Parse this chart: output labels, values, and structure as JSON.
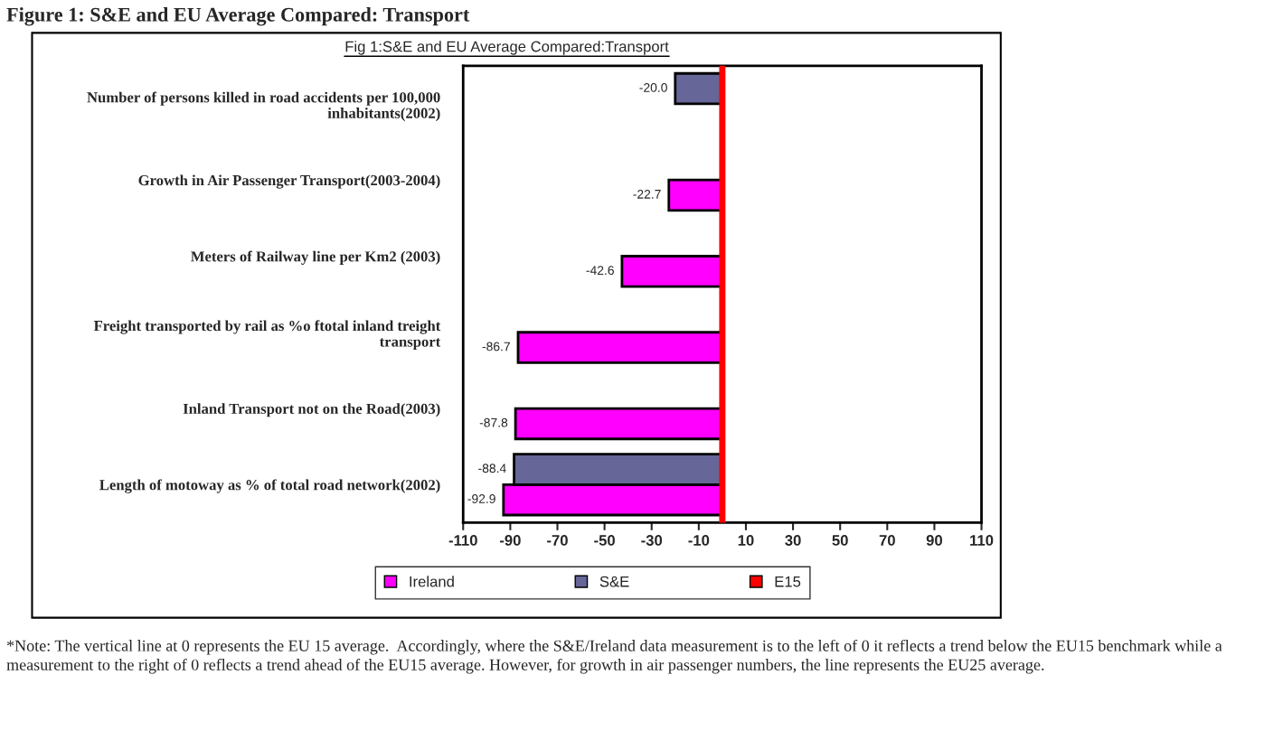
{
  "chart_data": {
    "type": "bar",
    "orientation": "horizontal",
    "title": "Figure 1: S&E and EU Average Compared: Transport",
    "subtitle": "Fig 1:S&E and EU Average Compared:Transport",
    "categories": [
      "Number of persons killed in road accidents per 100,000\ninhabitants(2002)",
      "Growth in Air Passenger Transport(2003-2004)",
      "Meters of Railway line per Km2 (2003)",
      "Freight transported by rail as %o ftotal inland treight\ntransport",
      "Inland Transport not on the Road(2003)",
      "Length of motoway as % of total road network(2002)"
    ],
    "series": [
      {
        "name": "Ireland",
        "color": "#ff00ff",
        "values": [
          null,
          -22.7,
          -42.6,
          -86.7,
          -87.8,
          -92.9
        ],
        "value_labels": [
          null,
          "-22.7",
          "-42.6",
          "-86.7",
          "-87.8",
          "-92.9"
        ]
      },
      {
        "name": "S&E",
        "color": "#666699",
        "values": [
          -20.0,
          null,
          null,
          null,
          null,
          -88.4
        ],
        "value_labels": [
          "-20.0",
          null,
          null,
          null,
          null,
          "-88.4"
        ]
      }
    ],
    "ref_lines": [
      {
        "axis": "x",
        "value": 0,
        "label": "E15",
        "color": "#ff0000"
      }
    ],
    "xlim": [
      -110,
      110
    ],
    "xticks": [
      -110,
      -90,
      -70,
      -50,
      -30,
      -10,
      10,
      30,
      50,
      70,
      90,
      110
    ],
    "grid": false,
    "legend": "bottom",
    "annotations": [
      "*Note: The vertical line at 0 represents the EU 15 average.  Accordingly, where the S&E/Ireland data measurement is to the left of 0 it reflects a trend below the EU15 benchmark while a measurement to the right of 0 reflects a trend ahead of the EU15 average. However, for growth in air passenger numbers, the line represents the EU25 average."
    ]
  }
}
